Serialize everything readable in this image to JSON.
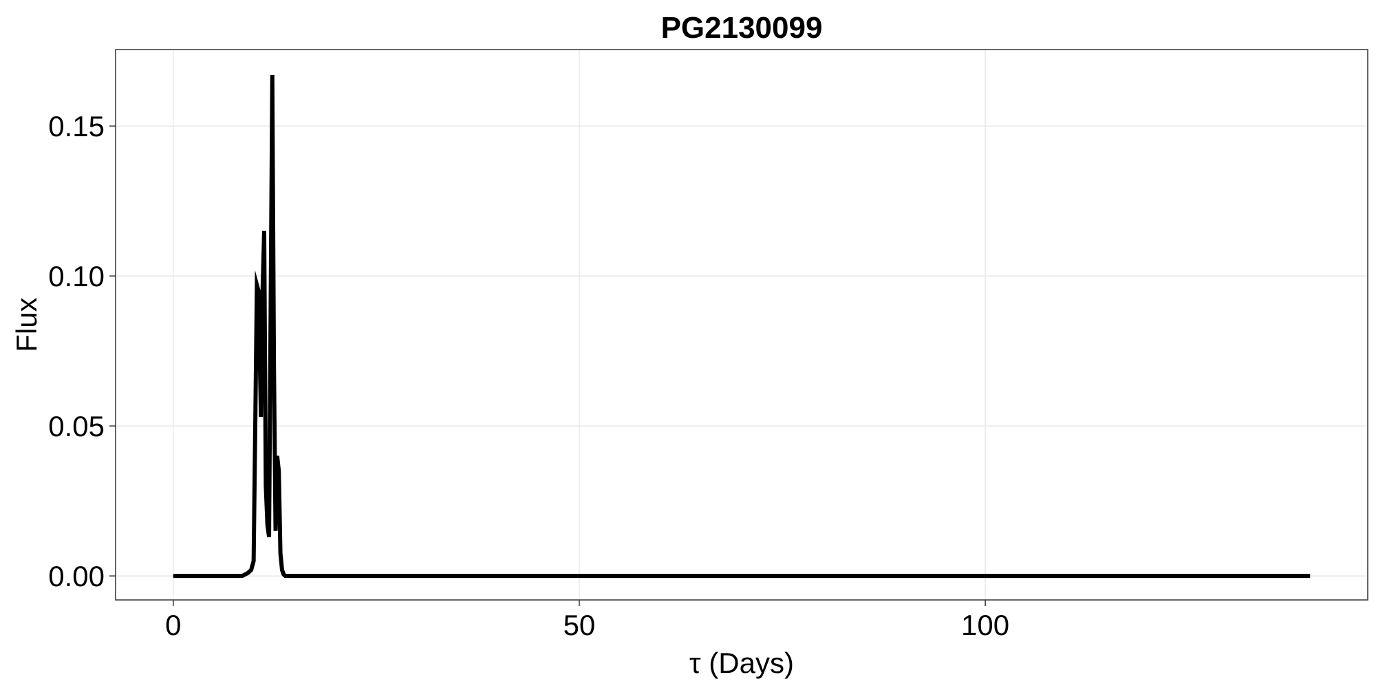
{
  "chart_data": {
    "type": "line",
    "title": "PG2130099",
    "xlabel": "τ (Days)",
    "ylabel": "Flux",
    "xlim": [
      -7.1,
      147.1
    ],
    "ylim": [
      -0.008,
      0.1755
    ],
    "x_ticks": [
      0,
      50,
      100
    ],
    "x_tick_labels": [
      "0",
      "50",
      "100"
    ],
    "y_ticks": [
      0.0,
      0.05,
      0.1,
      0.15
    ],
    "y_tick_labels": [
      "0.00",
      "0.05",
      "0.10",
      "0.15"
    ],
    "grid": true,
    "legend": "none",
    "line_color": "#000000",
    "series": [
      {
        "x": [
          0,
          8.5,
          9.2,
          9.6,
          9.9,
          10.1,
          10.3,
          10.5,
          10.8,
          11.0,
          11.2,
          11.4,
          11.6,
          11.8,
          12.0,
          12.2,
          12.4,
          12.6,
          12.8,
          13.0,
          13.2,
          13.4,
          13.6,
          13.8,
          14.2,
          15.0,
          140
        ],
        "y": [
          0,
          0,
          0.001,
          0.002,
          0.005,
          0.05,
          0.097,
          0.095,
          0.053,
          0.095,
          0.115,
          0.03,
          0.017,
          0.013,
          0.09,
          0.167,
          0.07,
          0.015,
          0.04,
          0.035,
          0.0075,
          0.002,
          0.0005,
          0,
          0,
          0,
          0
        ]
      }
    ]
  }
}
